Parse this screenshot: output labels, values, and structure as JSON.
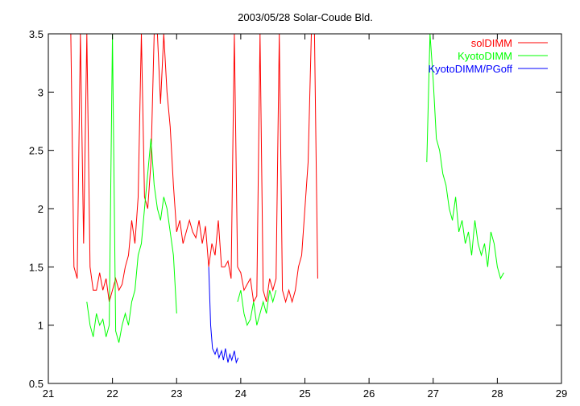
{
  "chart_data": {
    "type": "line",
    "title": "2003/05/28 Solar-Coude Bld.",
    "xlabel": "",
    "ylabel": "",
    "xlim": [
      21,
      29
    ],
    "ylim": [
      0.5,
      3.5
    ],
    "x_ticks": [
      21,
      22,
      23,
      24,
      25,
      26,
      27,
      28,
      29
    ],
    "y_ticks": [
      0.5,
      1,
      1.5,
      2,
      2.5,
      3,
      3.5
    ],
    "x_tick_labels": [
      "21",
      "22",
      "23",
      "24",
      "25",
      "26",
      "27",
      "28",
      "29"
    ],
    "y_tick_labels": [
      "0.5",
      "1",
      "1.5",
      "2",
      "2.5",
      "3",
      "3.5"
    ],
    "grid": false,
    "legend_position": "top-right",
    "series": [
      {
        "name": "solDIMM",
        "color": "#ff0000",
        "segments": [
          {
            "x": [
              21.35,
              21.4,
              21.45,
              21.5,
              21.55,
              21.6,
              21.65,
              21.7,
              21.75,
              21.8,
              21.85,
              21.9,
              21.95,
              22.0,
              22.05,
              22.1,
              22.15,
              22.2,
              22.25,
              22.3,
              22.35,
              22.4,
              22.45,
              22.5,
              22.55,
              22.6,
              22.65,
              22.7,
              22.75,
              22.8,
              22.85,
              22.9,
              22.95,
              23.0,
              23.05,
              23.1,
              23.15,
              23.2,
              23.25,
              23.3,
              23.35,
              23.4,
              23.45,
              23.5,
              23.55,
              23.6,
              23.65,
              23.7,
              23.75,
              23.8,
              23.85,
              23.9,
              23.95,
              24.0,
              24.05,
              24.1,
              24.15,
              24.2,
              24.25,
              24.3,
              24.35,
              24.4,
              24.45,
              24.5,
              24.55,
              24.6,
              24.65,
              24.7,
              24.75,
              24.8,
              24.85,
              24.9,
              24.95,
              25.0,
              25.05,
              25.1,
              25.15,
              25.2
            ],
            "y": [
              3.5,
              1.5,
              1.4,
              3.5,
              1.7,
              3.5,
              1.5,
              1.3,
              1.3,
              1.45,
              1.3,
              1.4,
              1.2,
              1.3,
              1.4,
              1.3,
              1.35,
              1.5,
              1.6,
              1.9,
              1.7,
              2.1,
              3.5,
              2.1,
              2.0,
              2.4,
              3.5,
              3.5,
              2.9,
              3.5,
              3.0,
              2.7,
              2.2,
              1.8,
              1.9,
              1.7,
              1.8,
              1.9,
              1.8,
              1.75,
              1.9,
              1.7,
              1.85,
              1.5,
              1.7,
              1.6,
              1.9,
              1.5,
              1.5,
              1.55,
              1.4,
              3.5,
              1.5,
              1.45,
              1.3,
              1.35,
              1.4,
              1.2,
              1.25,
              3.5,
              1.3,
              1.2,
              1.4,
              1.3,
              1.4,
              3.5,
              1.3,
              1.2,
              1.3,
              1.2,
              1.3,
              1.5,
              1.6,
              2.0,
              2.4,
              3.5,
              3.5,
              1.4
            ]
          }
        ]
      },
      {
        "name": "KyotoDIMM",
        "color": "#00ff00",
        "segments": [
          {
            "x": [
              21.6,
              21.65,
              21.7,
              21.75,
              21.8,
              21.85,
              21.9,
              21.95,
              22.0,
              22.05,
              22.1,
              22.15,
              22.2,
              22.25,
              22.3,
              22.35,
              22.4,
              22.45,
              22.5,
              22.55,
              22.6,
              22.65,
              22.7,
              22.75,
              22.8,
              22.85,
              22.9,
              22.95,
              23.0
            ],
            "y": [
              1.2,
              1.0,
              0.9,
              1.1,
              1.0,
              1.05,
              0.9,
              1.0,
              3.5,
              0.95,
              0.85,
              1.0,
              1.1,
              1.0,
              1.2,
              1.3,
              1.6,
              1.7,
              2.0,
              2.3,
              2.6,
              2.2,
              2.0,
              1.9,
              2.1,
              2.0,
              1.8,
              1.6,
              1.1
            ]
          },
          {
            "x": [
              23.95,
              24.0,
              24.05,
              24.1,
              24.15,
              24.2,
              24.25,
              24.3,
              24.35,
              24.4,
              24.45,
              24.5,
              24.55
            ],
            "y": [
              1.2,
              1.3,
              1.1,
              1.0,
              1.05,
              1.2,
              1.0,
              1.1,
              1.2,
              1.1,
              1.3,
              1.2,
              1.3
            ]
          },
          {
            "x": [
              26.9,
              26.95,
              27.0,
              27.05,
              27.1,
              27.15,
              27.2,
              27.25,
              27.3,
              27.35,
              27.4,
              27.45,
              27.5,
              27.55,
              27.6,
              27.65,
              27.7,
              27.75,
              27.8,
              27.85,
              27.9,
              27.95,
              28.0,
              28.05,
              28.1
            ],
            "y": [
              2.4,
              3.5,
              3.1,
              2.6,
              2.5,
              2.3,
              2.2,
              2.0,
              1.9,
              2.1,
              1.8,
              1.9,
              1.7,
              1.8,
              1.6,
              1.9,
              1.7,
              1.6,
              1.7,
              1.5,
              1.8,
              1.7,
              1.5,
              1.4,
              1.45
            ]
          }
        ]
      },
      {
        "name": "KyotoDIMM/PGoff",
        "color": "#0000ff",
        "segments": [
          {
            "x": [
              23.5,
              23.53,
              23.56,
              23.6,
              23.63,
              23.66,
              23.7,
              23.73,
              23.76,
              23.8,
              23.83,
              23.86,
              23.9,
              23.93,
              23.96
            ],
            "y": [
              1.5,
              1.0,
              0.8,
              0.75,
              0.8,
              0.72,
              0.78,
              0.7,
              0.8,
              0.68,
              0.75,
              0.7,
              0.78,
              0.68,
              0.72
            ]
          }
        ]
      }
    ]
  }
}
